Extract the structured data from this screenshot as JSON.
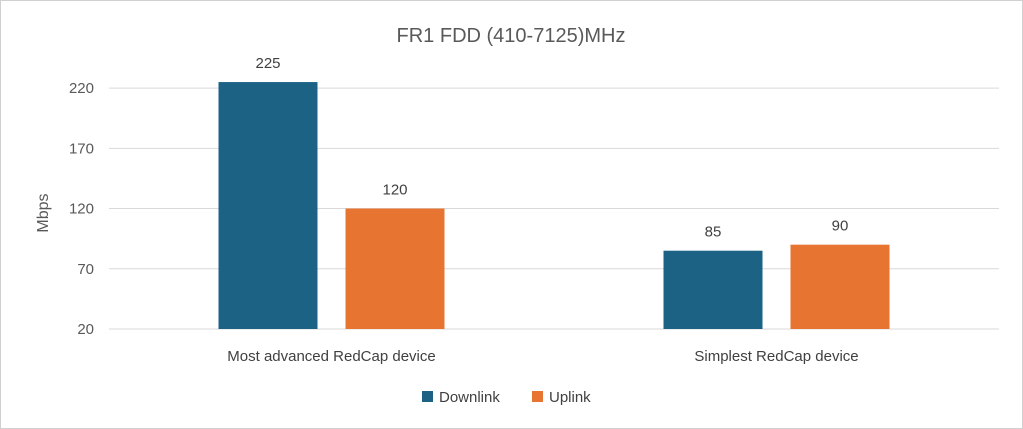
{
  "chart_data": {
    "type": "bar",
    "title": "FR1 FDD (410-7125)MHz",
    "ylabel": "Mbps",
    "xlabel": "",
    "categories": [
      "Most advanced RedCap device",
      "Simplest RedCap device"
    ],
    "series": [
      {
        "name": "Downlink",
        "values": [
          225,
          85
        ],
        "color": "#1b6284"
      },
      {
        "name": "Uplink",
        "values": [
          120,
          90
        ],
        "color": "#e87432"
      }
    ],
    "ylim": [
      20,
      240
    ],
    "yticks": [
      20,
      70,
      120,
      170,
      220
    ],
    "grid": true,
    "legend": "bottom"
  }
}
